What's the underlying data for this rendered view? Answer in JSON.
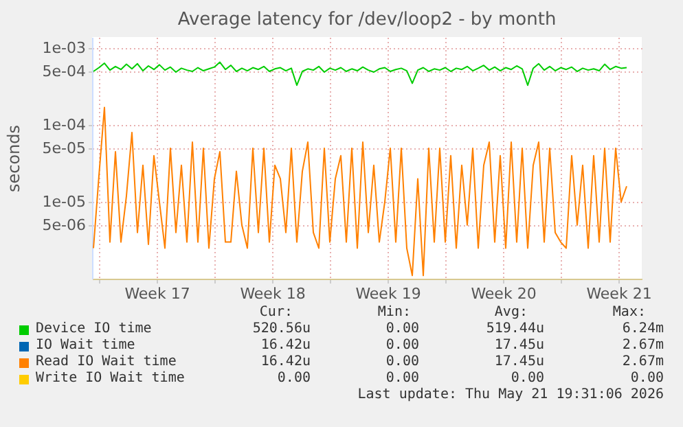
{
  "chart_data": {
    "type": "line",
    "title": "Average latency for /dev/loop2 - by month",
    "ylabel": "seconds",
    "log": "y",
    "grid": true,
    "legend": "bottom",
    "xlim": [
      "2026-04-19T14:00",
      "2026-05-22T22:00"
    ],
    "xticks": [
      {
        "value": "2026-04-20",
        "label": null
      },
      {
        "value": "2026-04-23T12:00",
        "label": "Week 17"
      },
      {
        "value": "2026-04-27",
        "label": null
      },
      {
        "value": "2026-04-30T12:00",
        "label": "Week 18"
      },
      {
        "value": "2026-05-04",
        "label": null
      },
      {
        "value": "2026-05-07T12:00",
        "label": "Week 19"
      },
      {
        "value": "2026-05-11",
        "label": null
      },
      {
        "value": "2026-05-14T12:00",
        "label": "Week 20"
      },
      {
        "value": "2026-05-18",
        "label": null
      },
      {
        "value": "2026-05-21T12:00",
        "label": "Week 21"
      }
    ],
    "ylim": [
      1e-06,
      0.0014
    ],
    "yticks": [
      {
        "value": 5e-06,
        "label": "5e-06"
      },
      {
        "value": 1e-05,
        "label": "1e-05"
      },
      {
        "value": 5e-05,
        "label": "5e-05"
      },
      {
        "value": 0.0001,
        "label": "1e-04"
      },
      {
        "value": 0.0005,
        "label": "5e-04"
      },
      {
        "value": 0.001,
        "label": "1e-03"
      }
    ],
    "x": [
      "2026-04-19T16:00",
      "2026-04-20T00:00",
      "2026-04-20T08:00",
      "2026-04-20T16:00",
      "2026-04-21T00:00",
      "2026-04-21T08:00",
      "2026-04-21T16:00",
      "2026-04-22T00:00",
      "2026-04-22T08:00",
      "2026-04-22T16:00",
      "2026-04-23T00:00",
      "2026-04-23T08:00",
      "2026-04-23T16:00",
      "2026-04-24T00:00",
      "2026-04-24T08:00",
      "2026-04-24T16:00",
      "2026-04-25T00:00",
      "2026-04-25T08:00",
      "2026-04-25T16:00",
      "2026-04-26T00:00",
      "2026-04-26T08:00",
      "2026-04-26T16:00",
      "2026-04-27T00:00",
      "2026-04-27T08:00",
      "2026-04-27T16:00",
      "2026-04-28T00:00",
      "2026-04-28T08:00",
      "2026-04-28T16:00",
      "2026-04-29T00:00",
      "2026-04-29T08:00",
      "2026-04-29T16:00",
      "2026-04-30T00:00",
      "2026-04-30T08:00",
      "2026-04-30T16:00",
      "2026-05-01T00:00",
      "2026-05-01T08:00",
      "2026-05-01T16:00",
      "2026-05-02T00:00",
      "2026-05-02T08:00",
      "2026-05-02T16:00",
      "2026-05-03T00:00",
      "2026-05-03T08:00",
      "2026-05-03T16:00",
      "2026-05-04T00:00",
      "2026-05-04T08:00",
      "2026-05-04T16:00",
      "2026-05-05T00:00",
      "2026-05-05T08:00",
      "2026-05-05T16:00",
      "2026-05-06T00:00",
      "2026-05-06T08:00",
      "2026-05-06T16:00",
      "2026-05-07T00:00",
      "2026-05-07T08:00",
      "2026-05-07T16:00",
      "2026-05-08T00:00",
      "2026-05-08T08:00",
      "2026-05-08T16:00",
      "2026-05-09T00:00",
      "2026-05-09T08:00",
      "2026-05-09T16:00",
      "2026-05-10T00:00",
      "2026-05-10T08:00",
      "2026-05-10T16:00",
      "2026-05-11T00:00",
      "2026-05-11T08:00",
      "2026-05-11T16:00",
      "2026-05-12T00:00",
      "2026-05-12T08:00",
      "2026-05-12T16:00",
      "2026-05-13T00:00",
      "2026-05-13T08:00",
      "2026-05-13T16:00",
      "2026-05-14T00:00",
      "2026-05-14T08:00",
      "2026-05-14T16:00",
      "2026-05-15T00:00",
      "2026-05-15T08:00",
      "2026-05-15T16:00",
      "2026-05-16T00:00",
      "2026-05-16T08:00",
      "2026-05-16T16:00",
      "2026-05-17T00:00",
      "2026-05-17T08:00",
      "2026-05-17T16:00",
      "2026-05-18T00:00",
      "2026-05-18T08:00",
      "2026-05-18T16:00",
      "2026-05-19T00:00",
      "2026-05-19T08:00",
      "2026-05-19T16:00",
      "2026-05-20T00:00",
      "2026-05-20T08:00",
      "2026-05-20T16:00",
      "2026-05-21T00:00",
      "2026-05-21T08:00",
      "2026-05-21T16:00",
      "2026-05-22T00:00"
    ],
    "series": [
      {
        "name": "Device IO time",
        "color": "#00cc00",
        "values": [
          0.0005,
          0.00056,
          0.00064,
          0.00052,
          0.00058,
          0.00053,
          0.00062,
          0.00054,
          0.00063,
          0.00051,
          0.00059,
          0.00053,
          0.00061,
          0.00052,
          0.00057,
          0.00049,
          0.00055,
          0.00052,
          0.0005,
          0.00056,
          0.00051,
          0.00054,
          0.00057,
          0.00066,
          0.00053,
          0.0006,
          0.0005,
          0.00055,
          0.00051,
          0.00056,
          0.00053,
          0.00058,
          0.0005,
          0.00054,
          0.00056,
          0.00051,
          0.00055,
          0.00033,
          0.0005,
          0.00054,
          0.00052,
          0.00058,
          0.00049,
          0.00055,
          0.00052,
          0.00056,
          0.0005,
          0.00054,
          0.00051,
          0.00057,
          0.00052,
          0.00049,
          0.00054,
          0.00056,
          0.0005,
          0.00053,
          0.00055,
          0.00051,
          0.00035,
          0.00052,
          0.00056,
          0.0005,
          0.00054,
          0.00052,
          0.00056,
          0.0005,
          0.00055,
          0.00053,
          0.00058,
          0.00051,
          0.00055,
          0.0006,
          0.00052,
          0.00057,
          0.00051,
          0.00056,
          0.00053,
          0.00059,
          0.00054,
          0.00033,
          0.00055,
          0.00063,
          0.00052,
          0.00058,
          0.00051,
          0.00056,
          0.00053,
          0.00057,
          0.0005,
          0.00055,
          0.00052,
          0.00054,
          0.00051,
          0.00062,
          0.00053,
          0.00058,
          0.00055,
          0.00056
        ]
      },
      {
        "name": "IO Wait time",
        "color": "#0066b3",
        "values": [
          null,
          null,
          null,
          null,
          null,
          null,
          null,
          null,
          null,
          null,
          null,
          null,
          null,
          null,
          null,
          null,
          null,
          null,
          null,
          null,
          null,
          null,
          null,
          null,
          null,
          null,
          null,
          null,
          null,
          null,
          null,
          null,
          null,
          null,
          null,
          null,
          null,
          null,
          null,
          null,
          null,
          null,
          null,
          null,
          null,
          null,
          null,
          null,
          null,
          null,
          null,
          null,
          null,
          null,
          null,
          null,
          null,
          null,
          null,
          null,
          null,
          null,
          null,
          null,
          null,
          null,
          null,
          null,
          null,
          null,
          null,
          null,
          null,
          null,
          null,
          null,
          null,
          null,
          null,
          null,
          null,
          null,
          null,
          null,
          null,
          null,
          null,
          null,
          null,
          null,
          null,
          null,
          null,
          null,
          null,
          null,
          null,
          null
        ]
      },
      {
        "name": "Read IO Wait time",
        "color": "#ff8000",
        "values": [
          2.5e-06,
          2.2e-05,
          0.00017,
          3e-06,
          4.5e-05,
          3e-06,
          1.2e-05,
          8e-05,
          4e-06,
          3e-05,
          2.8e-06,
          4e-05,
          1e-05,
          2.5e-06,
          5e-05,
          4e-06,
          3e-05,
          3e-06,
          6e-05,
          3e-06,
          5e-05,
          2.5e-06,
          2e-05,
          4.5e-05,
          3e-06,
          3e-06,
          2.5e-05,
          5e-06,
          2.5e-06,
          5e-05,
          4e-06,
          5e-05,
          3e-06,
          3e-05,
          2e-05,
          4e-06,
          5e-05,
          3e-06,
          2.5e-05,
          6e-05,
          4e-06,
          2.5e-06,
          5e-05,
          3e-06,
          2e-05,
          4e-05,
          3e-06,
          5e-05,
          2.5e-06,
          6e-05,
          4e-06,
          3e-05,
          3e-06,
          1e-05,
          5e-05,
          3e-06,
          5e-05,
          2.5e-06,
          1.1e-06,
          2e-05,
          1.1e-06,
          5e-05,
          3e-06,
          5e-05,
          3e-06,
          4e-05,
          2.5e-06,
          3e-05,
          5e-06,
          5e-05,
          2.5e-06,
          3e-05,
          6e-05,
          3e-06,
          4e-05,
          2.5e-06,
          6e-05,
          3e-06,
          5e-05,
          2.5e-06,
          3e-05,
          6e-05,
          3e-06,
          5e-05,
          4e-06,
          3e-06,
          2.5e-06,
          4e-05,
          5e-06,
          3e-05,
          2.5e-06,
          4e-05,
          3e-06,
          5e-05,
          3e-06,
          5e-05,
          1e-05,
          1.6e-05
        ]
      },
      {
        "name": "Write IO Wait time",
        "color": "#ffcc00",
        "values": [
          null,
          null,
          null,
          null,
          null,
          null,
          null,
          null,
          null,
          null,
          null,
          null,
          null,
          null,
          null,
          null,
          null,
          null,
          null,
          null,
          null,
          null,
          null,
          null,
          null,
          null,
          null,
          null,
          null,
          null,
          null,
          null,
          null,
          null,
          null,
          null,
          null,
          null,
          null,
          null,
          null,
          null,
          null,
          null,
          null,
          null,
          null,
          null,
          null,
          null,
          null,
          null,
          null,
          null,
          null,
          null,
          null,
          null,
          null,
          null,
          null,
          null,
          null,
          null,
          null,
          null,
          null,
          null,
          null,
          null,
          null,
          null,
          null,
          null,
          null,
          null,
          null,
          null,
          null,
          null,
          null,
          null,
          null,
          null,
          null,
          null,
          null,
          null,
          null,
          null,
          null,
          null,
          null,
          null,
          null,
          null,
          null,
          null
        ]
      }
    ],
    "annotations": [
      "Cur:",
      "Min:",
      "Avg:",
      "Max:",
      "520.56u",
      "0.00",
      "519.44u",
      "6.24m",
      "16.42u",
      "0.00",
      "17.45u",
      "2.67m",
      "16.42u",
      "0.00",
      "17.45u",
      "2.67m",
      "0.00",
      "0.00",
      "0.00",
      "0.00",
      "Last update: Thu May 21 19:31:06 2026"
    ]
  }
}
